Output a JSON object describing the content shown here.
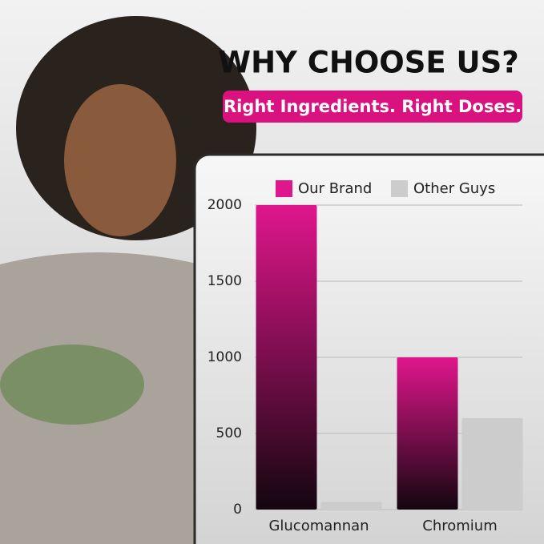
{
  "chart_data": {
    "type": "bar",
    "title": "WHY CHOOSE US?",
    "subtitle": "Right Ingredients. Right Doses.",
    "categories": [
      "Glucomannan",
      "Chromium"
    ],
    "series": [
      {
        "name": "Our Brand",
        "color": "#e0168c",
        "values": [
          2000,
          1000
        ]
      },
      {
        "name": "Other Guys",
        "color": "#cccccc",
        "values": [
          50,
          600
        ]
      }
    ],
    "ylim": [
      0,
      2000
    ],
    "yticks": [
      0,
      500,
      1000,
      1500,
      2000
    ],
    "grid": true,
    "legend": "top"
  }
}
